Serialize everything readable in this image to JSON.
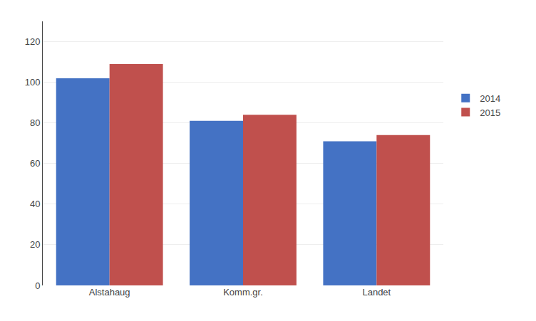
{
  "chart_data": {
    "type": "bar",
    "categories": [
      "Alstahaug",
      "Komm.gr.",
      "Landet"
    ],
    "series": [
      {
        "name": "2014",
        "color": "#4472C4",
        "values": [
          102,
          81,
          71
        ]
      },
      {
        "name": "2015",
        "color": "#C0504D",
        "values": [
          109,
          84,
          74
        ]
      }
    ],
    "ylim": [
      0,
      130
    ],
    "yticks": [
      0,
      20,
      40,
      60,
      80,
      100,
      120
    ],
    "grid": true,
    "legend": "right"
  }
}
